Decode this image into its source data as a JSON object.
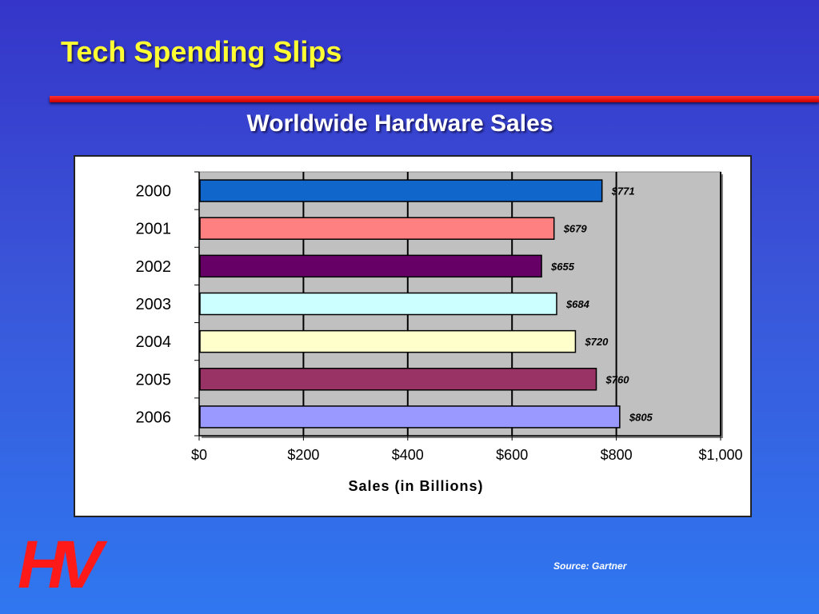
{
  "slide": {
    "title": "Tech Spending Slips",
    "logo_text": "HV",
    "source": "Source:  Gartner"
  },
  "colors": {
    "title": "#ffff33",
    "rule": "#cc0000",
    "plot_background": "#c0c0c0"
  },
  "chart_data": {
    "type": "bar",
    "orientation": "horizontal",
    "title": "Worldwide Hardware Sales",
    "xlabel": "Sales (in Billions)",
    "ylabel": "",
    "categories": [
      "2000",
      "2001",
      "2002",
      "2003",
      "2004",
      "2005",
      "2006"
    ],
    "values": [
      771,
      679,
      655,
      684,
      720,
      760,
      805
    ],
    "value_labels": [
      "$771",
      "$679",
      "$655",
      "$684",
      "$720",
      "$760",
      "$805"
    ],
    "bar_colors": [
      "#1166cc",
      "#ff8080",
      "#660066",
      "#ccffff",
      "#ffffcc",
      "#993366",
      "#9999ff"
    ],
    "xlim": [
      0,
      1000
    ],
    "xticks": [
      0,
      200,
      400,
      600,
      800,
      1000
    ],
    "xtick_labels": [
      "$0",
      "$200",
      "$400",
      "$600",
      "$800",
      "$1,000"
    ],
    "grid": true,
    "legend": "none"
  }
}
